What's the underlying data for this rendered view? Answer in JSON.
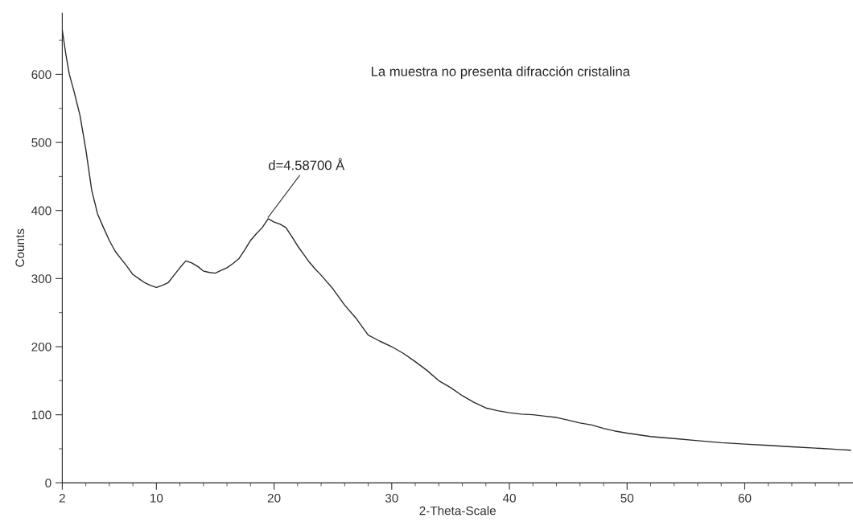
{
  "chart_data": {
    "type": "line",
    "xlabel": "2-Theta-Scale",
    "ylabel": "Counts",
    "x": [
      2,
      2.3,
      2.6,
      3,
      3.5,
      4,
      4.5,
      5,
      5.5,
      6,
      6.5,
      7,
      7.5,
      8,
      8.5,
      9,
      9.5,
      10,
      10.5,
      11,
      11.5,
      12,
      12.5,
      13,
      13.5,
      14,
      14.5,
      15,
      15.5,
      16,
      16.5,
      17,
      17.5,
      18,
      18.5,
      19,
      19.5,
      20,
      20.5,
      21,
      21.5,
      22,
      22.5,
      23,
      23.5,
      24,
      24.5,
      25,
      26,
      27,
      28,
      29,
      30,
      31,
      32,
      33,
      34,
      35,
      36,
      37,
      38,
      39,
      40,
      41,
      42,
      43,
      44,
      45,
      46,
      47,
      48,
      49,
      50,
      52,
      54,
      56,
      58,
      60,
      62,
      64,
      66,
      68,
      69
    ],
    "series": [
      {
        "color": "#2a2a2a",
        "values": [
          665,
          630,
          600,
          575,
          540,
          490,
          430,
          395,
          375,
          356,
          340,
          329,
          318,
          306,
          300,
          294,
          290,
          287,
          290,
          294,
          305,
          316,
          326,
          323,
          318,
          311,
          309,
          308,
          312,
          316,
          322,
          329,
          342,
          356,
          366,
          375,
          388,
          383,
          380,
          375,
          362,
          348,
          336,
          324,
          314,
          305,
          295,
          285,
          261,
          241,
          217,
          208,
          200,
          190,
          178,
          165,
          150,
          140,
          128,
          118,
          110,
          106,
          103,
          101,
          100,
          98,
          96,
          92,
          88,
          85,
          80,
          76,
          73,
          68,
          65,
          62,
          59,
          57,
          55,
          53,
          51,
          49,
          48
        ]
      }
    ],
    "xlim": [
      2,
      69.2
    ],
    "ylim": [
      0,
      690
    ],
    "xticks": [
      2,
      {
        "value": 4,
        "label": null
      },
      {
        "value": 6,
        "label": null
      },
      {
        "value": 8,
        "label": null
      },
      10,
      {
        "value": 12,
        "label": null
      },
      {
        "value": 14,
        "label": null
      },
      {
        "value": 16,
        "label": null
      },
      {
        "value": 18,
        "label": null
      },
      20,
      {
        "value": 22,
        "label": null
      },
      {
        "value": 24,
        "label": null
      },
      {
        "value": 26,
        "label": null
      },
      {
        "value": 28,
        "label": null
      },
      30,
      {
        "value": 32,
        "label": null
      },
      {
        "value": 34,
        "label": null
      },
      {
        "value": 36,
        "label": null
      },
      {
        "value": 38,
        "label": null
      },
      40,
      {
        "value": 42,
        "label": null
      },
      {
        "value": 44,
        "label": null
      },
      {
        "value": 46,
        "label": null
      },
      {
        "value": 48,
        "label": null
      },
      50,
      {
        "value": 52,
        "label": null
      },
      {
        "value": 54,
        "label": null
      },
      {
        "value": 56,
        "label": null
      },
      {
        "value": 58,
        "label": null
      },
      60,
      {
        "value": 62,
        "label": null
      },
      {
        "value": 64,
        "label": null
      },
      {
        "value": 66,
        "label": null
      },
      {
        "value": 68,
        "label": null
      }
    ],
    "yticks": [
      0,
      {
        "value": 50,
        "label": null
      },
      100,
      {
        "value": 150,
        "label": null
      },
      200,
      {
        "value": 250,
        "label": null
      },
      300,
      {
        "value": 350,
        "label": null
      },
      400,
      {
        "value": 450,
        "label": null
      },
      500,
      {
        "value": 550,
        "label": null
      },
      600,
      {
        "value": 650,
        "label": null
      }
    ],
    "annotations": [
      {
        "text": "d=4.58700 Å",
        "x": 19.5,
        "y": 390
      },
      "La muestra no presenta difracción cristalina"
    ],
    "grid": false,
    "legend": false,
    "marker": "none",
    "line_style": "solid"
  }
}
